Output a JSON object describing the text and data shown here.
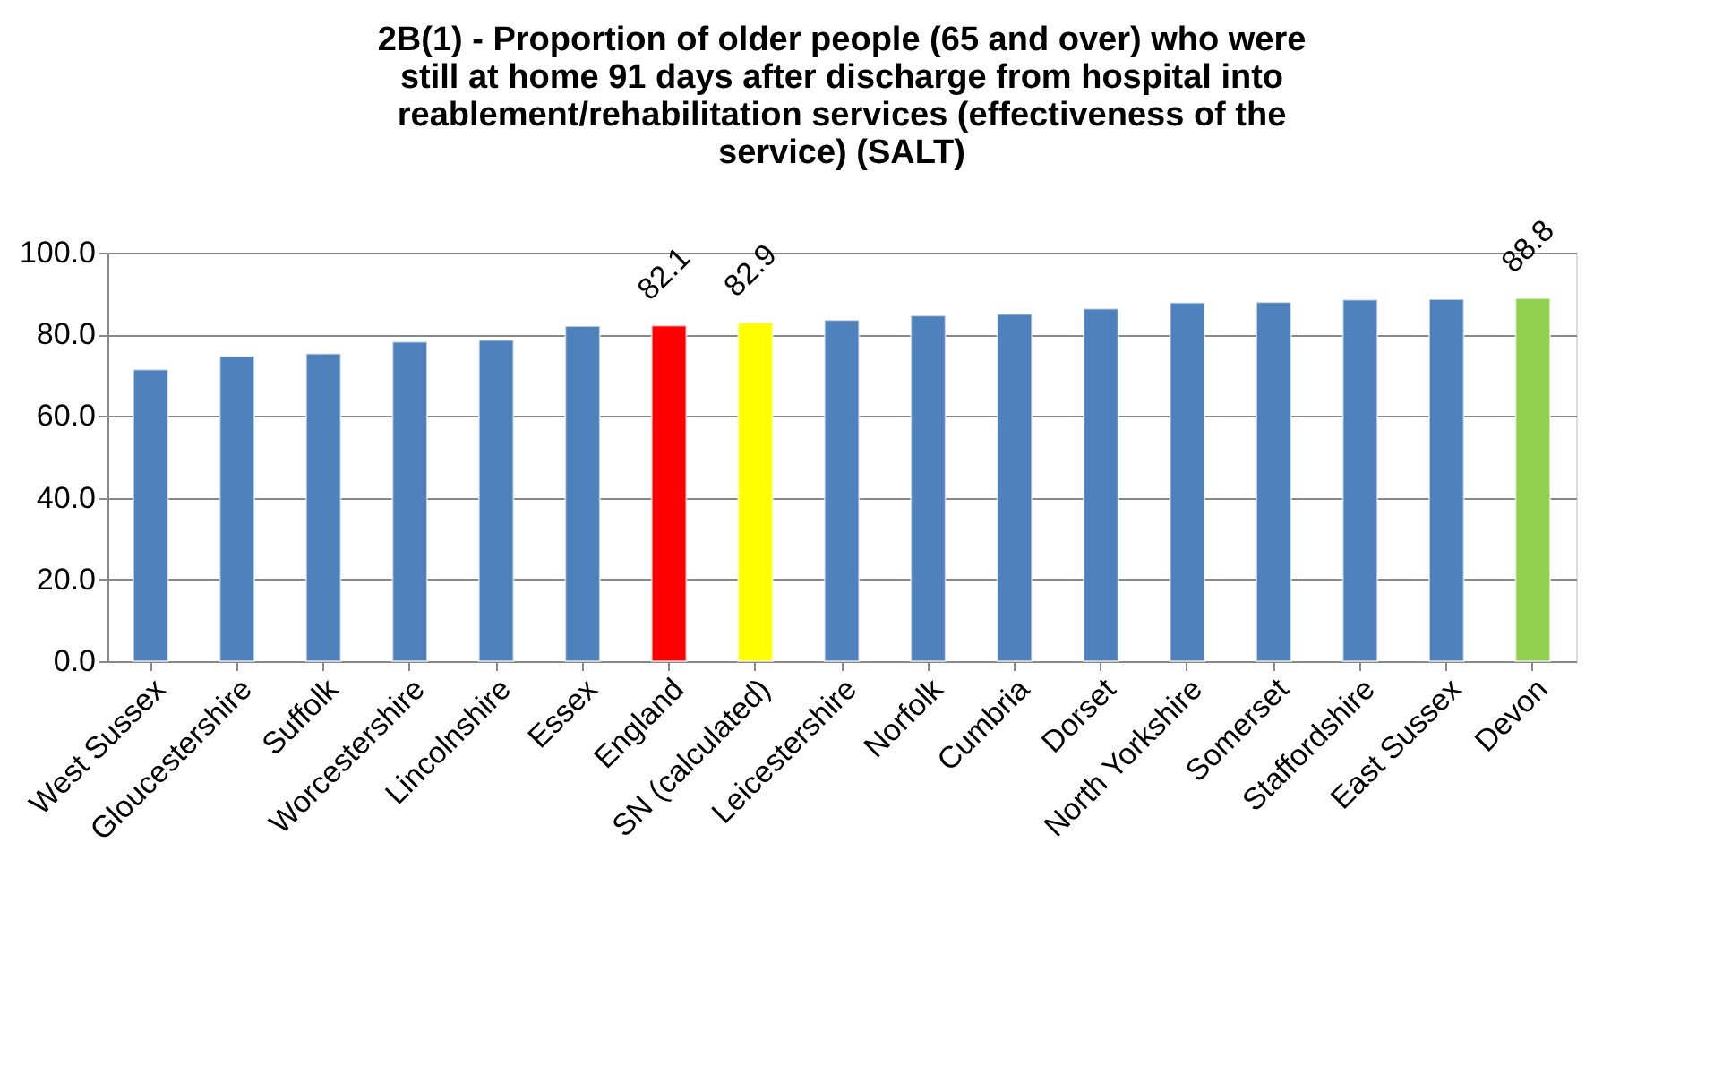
{
  "chart_data": {
    "type": "bar",
    "title": "2B(1) - Proportion of older people (65 and over) who were still at home 91 days after discharge from hospital into reablement/rehabilitation services (effectiveness of the service) (SALT)",
    "categories": [
      "West Sussex",
      "Gloucestershire",
      "Suffolk",
      "Worcestershire",
      "Lincolnshire",
      "Essex",
      "England",
      "SN (calculated)",
      "Leicestershire",
      "Norfolk",
      "Cumbria",
      "Dorset",
      "North Yorkshire",
      "Somerset",
      "Staffordshire",
      "East Sussex",
      "Devon"
    ],
    "values": [
      71.4,
      74.6,
      75.3,
      78.2,
      78.6,
      82.0,
      82.1,
      82.9,
      83.5,
      84.6,
      85.0,
      86.3,
      87.8,
      87.9,
      88.5,
      88.6,
      88.8
    ],
    "colors": [
      "#4f81bd",
      "#4f81bd",
      "#4f81bd",
      "#4f81bd",
      "#4f81bd",
      "#4f81bd",
      "#ff0000",
      "#ffff00",
      "#4f81bd",
      "#4f81bd",
      "#4f81bd",
      "#4f81bd",
      "#4f81bd",
      "#4f81bd",
      "#4f81bd",
      "#4f81bd",
      "#92d050"
    ],
    "value_labels": [
      null,
      null,
      null,
      null,
      null,
      null,
      "82.1",
      "82.9",
      null,
      null,
      null,
      null,
      null,
      null,
      null,
      null,
      "88.8"
    ],
    "ylim": [
      0,
      100
    ],
    "yticks": [
      {
        "value": 0,
        "label": "0.0"
      },
      {
        "value": 20,
        "label": "20.0"
      },
      {
        "value": 40,
        "label": "40.0"
      },
      {
        "value": 60,
        "label": "60.0"
      },
      {
        "value": 80,
        "label": "80.0"
      },
      {
        "value": 100,
        "label": "100.0"
      }
    ],
    "grid": "y"
  }
}
